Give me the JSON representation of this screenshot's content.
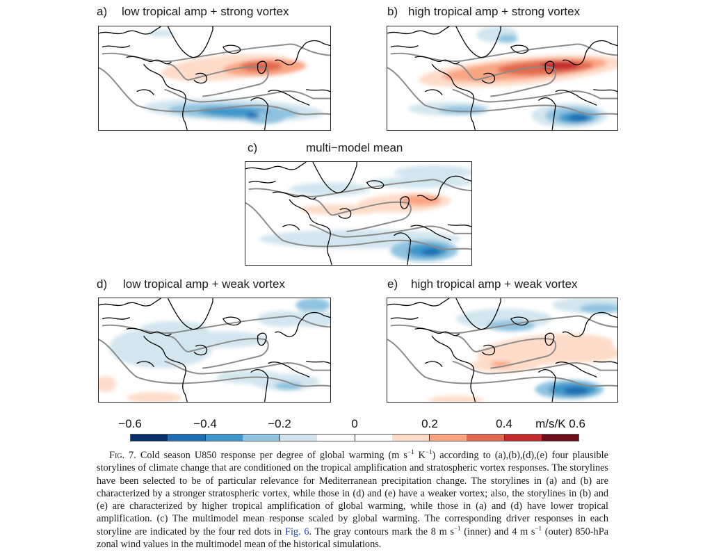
{
  "panels": [
    {
      "id": "a",
      "letter": "a)",
      "title": "low tropical amp + strong vortex"
    },
    {
      "id": "b",
      "letter": "b)",
      "title": "high tropical amp + strong vortex"
    },
    {
      "id": "c",
      "letter": "c)",
      "title": "multi−model mean"
    },
    {
      "id": "d",
      "letter": "d)",
      "title": "low tropical amp +  weak vortex"
    },
    {
      "id": "e",
      "letter": "e)",
      "title": "high tropical amp + weak vortex"
    }
  ],
  "colorbar": {
    "tick_labels": [
      "−0.6",
      "−0.4",
      "−0.2",
      "0",
      "0.2",
      "0.4"
    ],
    "units_label": "m/s/K 0.6",
    "colors": [
      "#08306b",
      "#1f6eb4",
      "#3d97c9",
      "#8fc3df",
      "#d3e6ef",
      "#ffffff",
      "#ffffff",
      "#fedcc9",
      "#f9a583",
      "#e06a4f",
      "#c42b2f",
      "#6b0f1a"
    ],
    "bounds": [
      -0.6,
      -0.5,
      -0.4,
      -0.3,
      -0.2,
      -0.1,
      0,
      0.1,
      0.2,
      0.3,
      0.4,
      0.5,
      0.6
    ]
  },
  "contour_color": "#8a8a8a",
  "caption": {
    "fig_label": "Fig. 7.",
    "text_1": " Cold season U850 response per degree of global warming (m s",
    "sup_1": "−1",
    "text_2": " K",
    "sup_2": "−1",
    "text_3": ") according to (a),(b),(d),(e) four plausible storylines of climate change that are conditioned on the tropical amplification and stratospheric vortex responses. The storylines have been selected to be of particular relevance for Mediterranean precipitation change. The storylines in (a) and (b) are characterized by a stronger stratospheric vortex, while those in (d) and (e) have a weaker vortex; also, the storylines in (b) and (e) are characterized by higher tropical amplification of global warming, while those in (a) and (d) have lower tropical amplification. (c) The multimodel mean response scaled by global warming. The corresponding driver responses in each storyline are indicated by the four red dots in ",
    "link_text": "Fig. 6",
    "text_4": ". The gray contours mark the 8 m s",
    "sup_3": "−1",
    "text_5": " (inner) and 4 m s",
    "sup_4": "−1",
    "text_6": " (outer) 850-hPa zonal wind values in the multimodel mean of the historical simulations."
  }
}
